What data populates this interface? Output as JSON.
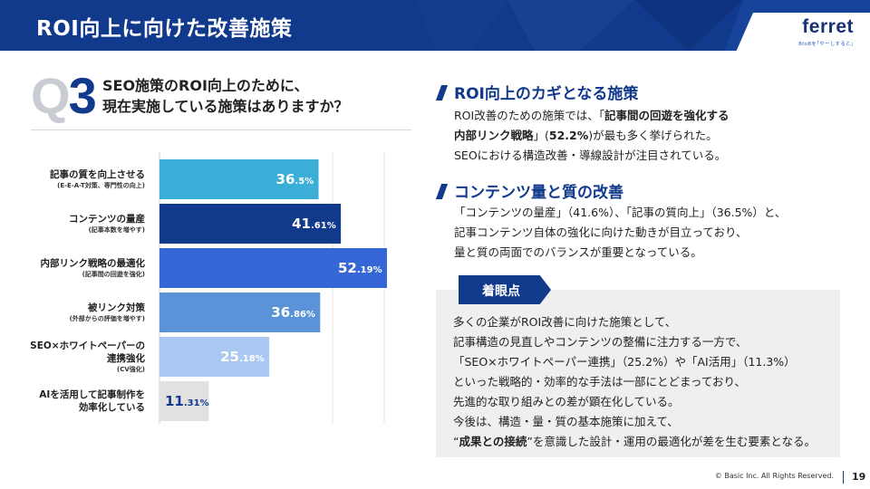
{
  "header": {
    "title": "ROI向上に向けた改善施策"
  },
  "logo": {
    "word": "ferret",
    "tagline": "BtoBを｢やーしすると｣"
  },
  "question": {
    "q": "Q",
    "n": "3",
    "line1": "SEO施策のROI向上のために、",
    "line2": "現在実施している施策はありますか？"
  },
  "chart_data": {
    "type": "bar",
    "orientation": "horizontal",
    "unit": "%",
    "categories": [
      {
        "main": "記事の質を向上させる",
        "sub": "(E-E-A-T対策、専門性の向上)",
        "value_int": "36",
        "value_dec": ".5%"
      },
      {
        "main": "コンテンツの量産",
        "sub": "(記事本数を増やす)",
        "value_int": "41",
        "value_dec": ".61%"
      },
      {
        "main": "内部リンク戦略の最適化",
        "sub": "(記事間の回遊を強化)",
        "value_int": "52",
        "value_dec": ".19%"
      },
      {
        "main": "被リンク対策",
        "sub": "(外部からの評価を増やす)",
        "value_int": "36",
        "value_dec": ".86%"
      },
      {
        "main": "SEO×ホワイトペーパーの",
        "main2": "連携強化",
        "sub": "(CV強化)",
        "value_int": "25",
        "value_dec": ".18%"
      },
      {
        "main": "AIを活用して記事制作を",
        "main2": "効率化している",
        "sub": "",
        "value_int": "11",
        "value_dec": ".31%"
      }
    ],
    "values": [
      36.5,
      41.61,
      52.19,
      36.86,
      25.18,
      11.31
    ],
    "colors": [
      "#3aaed6",
      "#123a8c",
      "#3568d6",
      "#5c93d8",
      "#a9c8f2",
      "#e1e1e1"
    ],
    "xlim": [
      0,
      60
    ]
  },
  "sections": {
    "s1": {
      "title": "ROI向上のカギとなる施策",
      "l1a": "ROI改善のための施策では、「",
      "l1b": "記事間の回遊を強化する",
      "l2a": "内部リンク戦略",
      "l2b": "」(",
      "l2c": "52.2%",
      "l2d": ")が最も多く挙げられた。",
      "l3": "SEOにおける構造改善・導線設計が注目されている。"
    },
    "s2": {
      "title": "コンテンツ量と質の改善",
      "l1": "「コンテンツの量産」（41.6%）、「記事の質向上」（36.5%）と、",
      "l2": "記事コンテンツ自体の強化に向けた動きが目立っており、",
      "l3": "量と質の両面でのバランスが重要となっている。"
    }
  },
  "note": {
    "tag": "着眼点",
    "l1": "多くの企業がROI改善に向けた施策として、",
    "l2": "記事構造の見直しやコンテンツの整備に注力する一方で、",
    "l3": "「SEO×ホワイトペーパー連携」（25.2%）や「AI活用」（11.3%）",
    "l4": "といった戦略的・効率的な手法は一部にとどまっており、",
    "l5": "先進的な取り組みとの差が顕在化している。",
    "l6": "今後は、構造・量・質の基本施策に加えて、",
    "l7a": "“",
    "l7b": "成果との接続",
    "l7c": "”を意識した設計・運用の最適化が差を生む要素となる。"
  },
  "footer": {
    "copyright": "© Basic Inc. All Rights Reserved.",
    "page": "19"
  }
}
